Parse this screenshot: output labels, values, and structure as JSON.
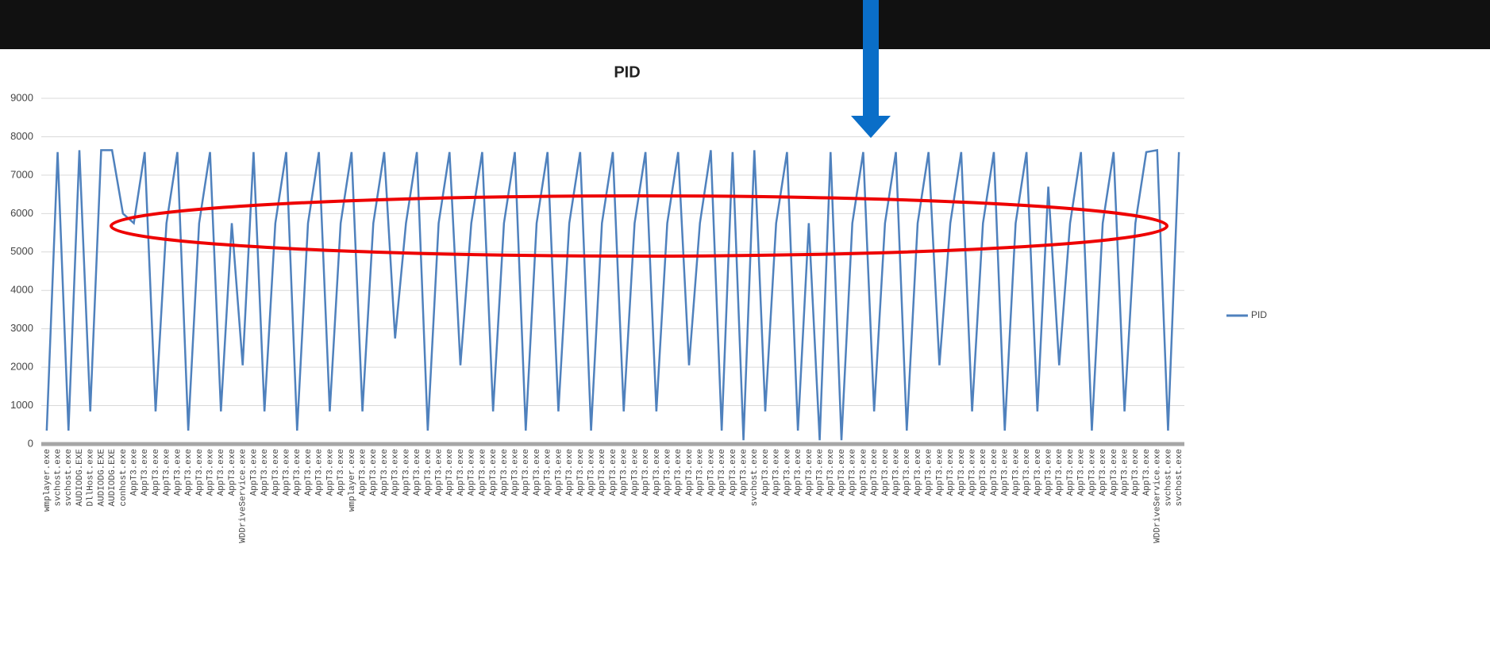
{
  "chart_data": {
    "type": "line",
    "title": "PID",
    "categories": [
      "wmplayer.exe",
      "svchost.exe",
      "svchost.exe",
      "AUDIODG.EXE",
      "DllHost.exe",
      "AUDIODG.EXE",
      "AUDIODG.EXE",
      "conhost.exe",
      "AppT3.exe",
      "AppT3.exe",
      "AppT3.exe",
      "AppT3.exe",
      "AppT3.exe",
      "AppT3.exe",
      "AppT3.exe",
      "AppT3.exe",
      "AppT3.exe",
      "AppT3.exe",
      "WDDriveService.exe",
      "AppT3.exe",
      "AppT3.exe",
      "AppT3.exe",
      "AppT3.exe",
      "AppT3.exe",
      "AppT3.exe",
      "AppT3.exe",
      "AppT3.exe",
      "AppT3.exe",
      "wmplayer.exe",
      "AppT3.exe",
      "AppT3.exe",
      "AppT3.exe",
      "AppT3.exe",
      "AppT3.exe",
      "AppT3.exe",
      "AppT3.exe",
      "AppT3.exe",
      "AppT3.exe",
      "AppT3.exe",
      "AppT3.exe",
      "AppT3.exe",
      "AppT3.exe",
      "AppT3.exe",
      "AppT3.exe",
      "AppT3.exe",
      "AppT3.exe",
      "AppT3.exe",
      "AppT3.exe",
      "AppT3.exe",
      "AppT3.exe",
      "AppT3.exe",
      "AppT3.exe",
      "AppT3.exe",
      "AppT3.exe",
      "AppT3.exe",
      "AppT3.exe",
      "AppT3.exe",
      "AppT3.exe",
      "AppT3.exe",
      "AppT3.exe",
      "AppT3.exe",
      "AppT3.exe",
      "AppT3.exe",
      "AppT3.exe",
      "AppT3.exe",
      "svchost.exe",
      "AppT3.exe",
      "AppT3.exe",
      "AppT3.exe",
      "AppT3.exe",
      "AppT3.exe",
      "AppT3.exe",
      "AppT3.exe",
      "AppT3.exe",
      "AppT3.exe",
      "AppT3.exe",
      "AppT3.exe",
      "AppT3.exe",
      "AppT3.exe",
      "AppT3.exe",
      "AppT3.exe",
      "AppT3.exe",
      "AppT3.exe",
      "AppT3.exe",
      "AppT3.exe",
      "AppT3.exe",
      "AppT3.exe",
      "AppT3.exe",
      "AppT3.exe",
      "AppT3.exe",
      "AppT3.exe",
      "AppT3.exe",
      "AppT3.exe",
      "AppT3.exe",
      "AppT3.exe",
      "AppT3.exe",
      "AppT3.exe",
      "AppT3.exe",
      "AppT3.exe",
      "AppT3.exe",
      "AppT3.exe",
      "AppT3.exe",
      "WDDriveService.exe",
      "svchost.exe",
      "svchost.exe"
    ],
    "series": [
      {
        "name": "PID",
        "color": "#4f81bd",
        "values": [
          350,
          7600,
          350,
          7650,
          850,
          7650,
          7650,
          6000,
          5750,
          7600,
          850,
          5750,
          7600,
          350,
          5750,
          7600,
          850,
          5750,
          2050,
          7600,
          850,
          5750,
          7600,
          350,
          5750,
          7600,
          850,
          5750,
          7600,
          850,
          5750,
          7600,
          2750,
          5750,
          7600,
          350,
          5750,
          7600,
          2050,
          5750,
          7600,
          850,
          5750,
          7600,
          350,
          5750,
          7600,
          850,
          5750,
          7600,
          350,
          5750,
          7600,
          850,
          5750,
          7600,
          850,
          5750,
          7600,
          2050,
          5750,
          7650,
          350,
          7600,
          100,
          7650,
          850,
          5750,
          7600,
          350,
          5750,
          100,
          7600,
          100,
          5750,
          7600,
          850,
          5750,
          7600,
          350,
          5750,
          7600,
          2050,
          5750,
          7600,
          850,
          5750,
          7600,
          350,
          5750,
          7600,
          850,
          6700,
          2050,
          5750,
          7600,
          350,
          5750,
          7600,
          850,
          5750,
          7600,
          7650,
          350,
          7600
        ]
      }
    ],
    "ylim": [
      0,
      9000
    ],
    "yticks": [
      0,
      1000,
      2000,
      3000,
      4000,
      5000,
      6000,
      7000,
      8000,
      9000
    ],
    "grid": true,
    "legend": "right"
  }
}
